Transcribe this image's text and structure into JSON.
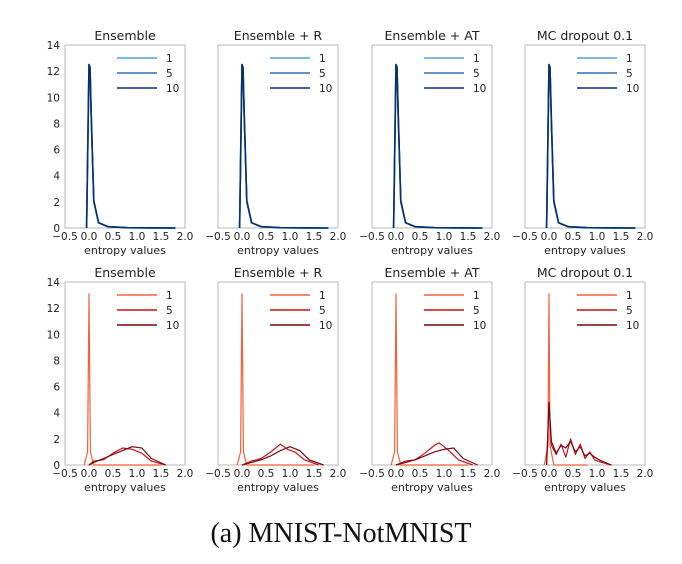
{
  "caption": "(a) MNIST-NotMNIST",
  "chart_data": [
    {
      "type": "line",
      "row": 0,
      "titles": [
        "Ensemble",
        "Ensemble + R",
        "Ensemble + AT",
        "MC dropout 0.1"
      ],
      "xlabel": "entropy values",
      "xlim": [
        -0.5,
        2.0
      ],
      "ylim": [
        0,
        14
      ],
      "xticks": [
        "−0.5",
        "0.0",
        "0.5",
        "1.0",
        "1.5",
        "2.0"
      ],
      "yticks": [
        "0",
        "2",
        "4",
        "6",
        "8",
        "10",
        "12",
        "14"
      ],
      "legend": [
        "1",
        "5",
        "10"
      ],
      "colors": [
        "#5aa2d4",
        "#2c6fb5",
        "#08306b"
      ],
      "series": [
        {
          "name": "1",
          "x": [
            -0.05,
            0.0,
            0.02,
            0.05,
            0.1,
            0.2,
            0.4,
            0.8,
            1.5,
            1.8
          ],
          "y": [
            0,
            12.4,
            12.2,
            8.0,
            2.0,
            0.4,
            0.1,
            0.02,
            0.01,
            0
          ]
        },
        {
          "name": "5",
          "x": [
            -0.05,
            0.0,
            0.02,
            0.05,
            0.1,
            0.2,
            0.4,
            0.8,
            1.5,
            1.8
          ],
          "y": [
            0,
            12.5,
            12.3,
            8.1,
            2.0,
            0.4,
            0.1,
            0.02,
            0.01,
            0
          ]
        },
        {
          "name": "10",
          "x": [
            -0.05,
            0.0,
            0.02,
            0.05,
            0.1,
            0.2,
            0.4,
            0.8,
            1.5,
            1.8
          ],
          "y": [
            0,
            12.5,
            12.3,
            8.2,
            2.1,
            0.4,
            0.1,
            0.02,
            0.01,
            0
          ]
        }
      ]
    },
    {
      "type": "line",
      "row": 1,
      "titles": [
        "Ensemble",
        "Ensemble + R",
        "Ensemble + AT",
        "MC dropout 0.1"
      ],
      "xlabel": "entropy values",
      "xlim": [
        -0.5,
        2.0
      ],
      "ylim": [
        0,
        14
      ],
      "xticks": [
        "−0.5",
        "0.0",
        "0.5",
        "1.0",
        "1.5",
        "2.0"
      ],
      "yticks": [
        "0",
        "2",
        "4",
        "6",
        "8",
        "10",
        "12",
        "14"
      ],
      "legend": [
        "1",
        "5",
        "10"
      ],
      "colors": [
        "#f2623a",
        "#c4161c",
        "#7a0510"
      ],
      "panels": [
        {
          "series": [
            {
              "name": "1",
              "x": [
                -0.1,
                -0.03,
                0.0,
                0.03,
                0.1,
                0.3,
                0.6,
                1.0,
                1.5
              ],
              "y": [
                0,
                1.0,
                13.1,
                1.0,
                0,
                0,
                0,
                0,
                0
              ]
            },
            {
              "name": "5",
              "x": [
                0.0,
                0.1,
                0.3,
                0.5,
                0.7,
                0.9,
                1.1,
                1.3,
                1.6
              ],
              "y": [
                0,
                0.3,
                0.4,
                0.9,
                1.3,
                1.2,
                0.9,
                0.3,
                0
              ]
            },
            {
              "name": "10",
              "x": [
                0.0,
                0.1,
                0.3,
                0.5,
                0.7,
                0.9,
                1.1,
                1.3,
                1.6
              ],
              "y": [
                0,
                0.2,
                0.5,
                0.8,
                1.1,
                1.4,
                1.3,
                0.5,
                0
              ]
            }
          ]
        },
        {
          "series": [
            {
              "name": "1",
              "x": [
                -0.1,
                -0.03,
                0.0,
                0.03,
                0.1,
                0.3,
                0.6,
                1.0,
                1.5
              ],
              "y": [
                0,
                1.0,
                13.1,
                1.0,
                0,
                0,
                0,
                0,
                0
              ]
            },
            {
              "name": "5",
              "x": [
                0.0,
                0.2,
                0.4,
                0.6,
                0.8,
                0.95,
                1.1,
                1.3,
                1.6
              ],
              "y": [
                0,
                0.3,
                0.5,
                1.0,
                1.6,
                1.2,
                1.0,
                0.4,
                0
              ]
            },
            {
              "name": "10",
              "x": [
                0.0,
                0.2,
                0.4,
                0.6,
                0.8,
                1.0,
                1.2,
                1.4,
                1.7
              ],
              "y": [
                0,
                0.2,
                0.4,
                0.7,
                1.1,
                1.4,
                1.1,
                0.4,
                0
              ]
            }
          ]
        },
        {
          "series": [
            {
              "name": "1",
              "x": [
                -0.1,
                -0.03,
                0.0,
                0.03,
                0.1,
                0.3,
                0.6,
                1.0,
                1.5
              ],
              "y": [
                0,
                1.0,
                13.1,
                1.0,
                0,
                0,
                0,
                0,
                0
              ]
            },
            {
              "name": "5",
              "x": [
                0.0,
                0.2,
                0.4,
                0.6,
                0.8,
                0.9,
                1.1,
                1.3,
                1.6
              ],
              "y": [
                0,
                0.3,
                0.4,
                0.9,
                1.5,
                1.7,
                1.1,
                0.4,
                0
              ]
            },
            {
              "name": "10",
              "x": [
                0.0,
                0.2,
                0.4,
                0.6,
                0.8,
                1.0,
                1.2,
                1.4,
                1.7
              ],
              "y": [
                0,
                0.2,
                0.4,
                0.7,
                1.0,
                1.2,
                1.3,
                0.5,
                0
              ]
            }
          ]
        },
        {
          "series": [
            {
              "name": "1",
              "x": [
                -0.1,
                -0.02,
                0.0,
                0.02,
                0.1,
                0.2,
                0.4,
                0.8
              ],
              "y": [
                0,
                1.5,
                13.1,
                1.5,
                0,
                0,
                0,
                0
              ]
            },
            {
              "name": "5",
              "x": [
                -0.05,
                0.0,
                0.05,
                0.15,
                0.25,
                0.35,
                0.45,
                0.55,
                0.65,
                0.75,
                0.85,
                0.95,
                1.1,
                1.3
              ],
              "y": [
                0,
                4.7,
                1.5,
                0.8,
                1.6,
                0.6,
                2.0,
                0.8,
                1.6,
                0.5,
                1.0,
                0.4,
                0.2,
                0
              ]
            },
            {
              "name": "10",
              "x": [
                -0.05,
                0.0,
                0.05,
                0.15,
                0.25,
                0.35,
                0.45,
                0.55,
                0.65,
                0.75,
                0.85,
                0.95,
                1.1,
                1.3
              ],
              "y": [
                0,
                4.8,
                1.8,
                0.9,
                1.5,
                1.3,
                1.8,
                1.0,
                1.4,
                0.7,
                0.9,
                0.6,
                0.3,
                0
              ]
            }
          ]
        }
      ]
    }
  ]
}
